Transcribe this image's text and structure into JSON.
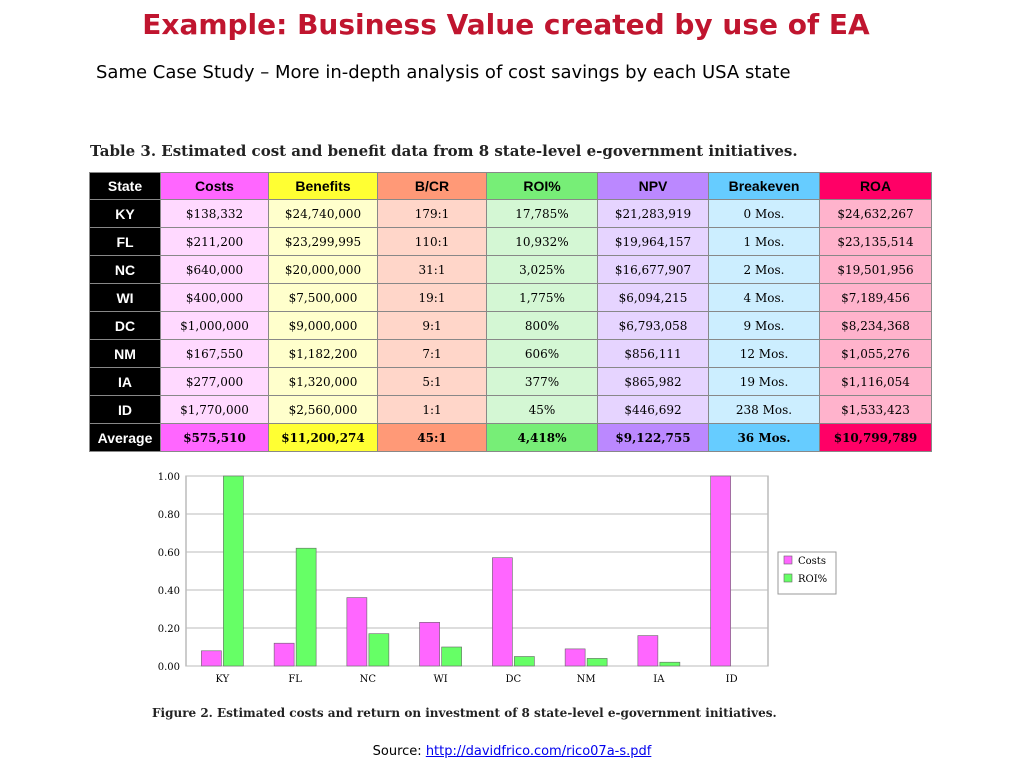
{
  "slide": {
    "title": "Example: Business Value created by use of EA",
    "subtitle": "Same Case Study – More in-depth analysis of cost savings by each USA state",
    "source_label": "Source: ",
    "source_link": "http://davidfrico.com/rico07a-s.pdf"
  },
  "table": {
    "caption": "Table 3. Estimated cost and benefit data from 8 state-level e-government initiatives.",
    "headers": [
      "State",
      "Costs",
      "Benefits",
      "B/CR",
      "ROI%",
      "NPV",
      "Breakeven",
      "ROA"
    ],
    "header_colors": [
      "#000000",
      "#ff66ff",
      "#ffff33",
      "#ff9977",
      "#77ee77",
      "#bb88ff",
      "#66ccff",
      "#ff0066"
    ],
    "cell_colors": [
      "#000000",
      "#ffd9ff",
      "#ffffcc",
      "#ffd6c9",
      "#d4f7d4",
      "#e6d4ff",
      "#cceeff",
      "#ffb3cc"
    ],
    "rows": [
      [
        "KY",
        "$138,332",
        "$24,740,000",
        "179:1",
        "17,785%",
        "$21,283,919",
        "0 Mos.",
        "$24,632,267"
      ],
      [
        "FL",
        "$211,200",
        "$23,299,995",
        "110:1",
        "10,932%",
        "$19,964,157",
        "1 Mos.",
        "$23,135,514"
      ],
      [
        "NC",
        "$640,000",
        "$20,000,000",
        "31:1",
        "3,025%",
        "$16,677,907",
        "2 Mos.",
        "$19,501,956"
      ],
      [
        "WI",
        "$400,000",
        "$7,500,000",
        "19:1",
        "1,775%",
        "$6,094,215",
        "4 Mos.",
        "$7,189,456"
      ],
      [
        "DC",
        "$1,000,000",
        "$9,000,000",
        "9:1",
        "800%",
        "$6,793,058",
        "9 Mos.",
        "$8,234,368"
      ],
      [
        "NM",
        "$167,550",
        "$1,182,200",
        "7:1",
        "606%",
        "$856,111",
        "12 Mos.",
        "$1,055,276"
      ],
      [
        "IA",
        "$277,000",
        "$1,320,000",
        "5:1",
        "377%",
        "$865,982",
        "19 Mos.",
        "$1,116,054"
      ],
      [
        "ID",
        "$1,770,000",
        "$2,560,000",
        "1:1",
        "45%",
        "$446,692",
        "238 Mos.",
        "$1,533,423"
      ]
    ],
    "average": [
      "Average",
      "$575,510",
      "$11,200,274",
      "45:1",
      "4,418%",
      "$9,122,755",
      "36 Mos.",
      "$10,799,789"
    ],
    "average_colors": [
      "#000000",
      "#ff66ff",
      "#ffff33",
      "#ff9977",
      "#77ee77",
      "#bb88ff",
      "#66ccff",
      "#ff0066"
    ]
  },
  "figure": {
    "caption": "Figure 2. Estimated costs and return on investment of 8 state-level e-government initiatives."
  },
  "chart_data": {
    "type": "bar",
    "categories": [
      "KY",
      "FL",
      "NC",
      "WI",
      "DC",
      "NM",
      "IA",
      "ID"
    ],
    "series": [
      {
        "name": "Costs",
        "color": "#ff66ff",
        "values": [
          0.08,
          0.12,
          0.36,
          0.23,
          0.57,
          0.09,
          0.16,
          1.0
        ]
      },
      {
        "name": "ROI%",
        "color": "#66ff66",
        "values": [
          1.0,
          0.62,
          0.17,
          0.1,
          0.05,
          0.04,
          0.02,
          0.0
        ]
      }
    ],
    "ylim": [
      0,
      1.0
    ],
    "yticks": [
      "0.00",
      "0.20",
      "0.40",
      "0.60",
      "0.80",
      "1.00"
    ],
    "legend": "right",
    "grid": true
  }
}
